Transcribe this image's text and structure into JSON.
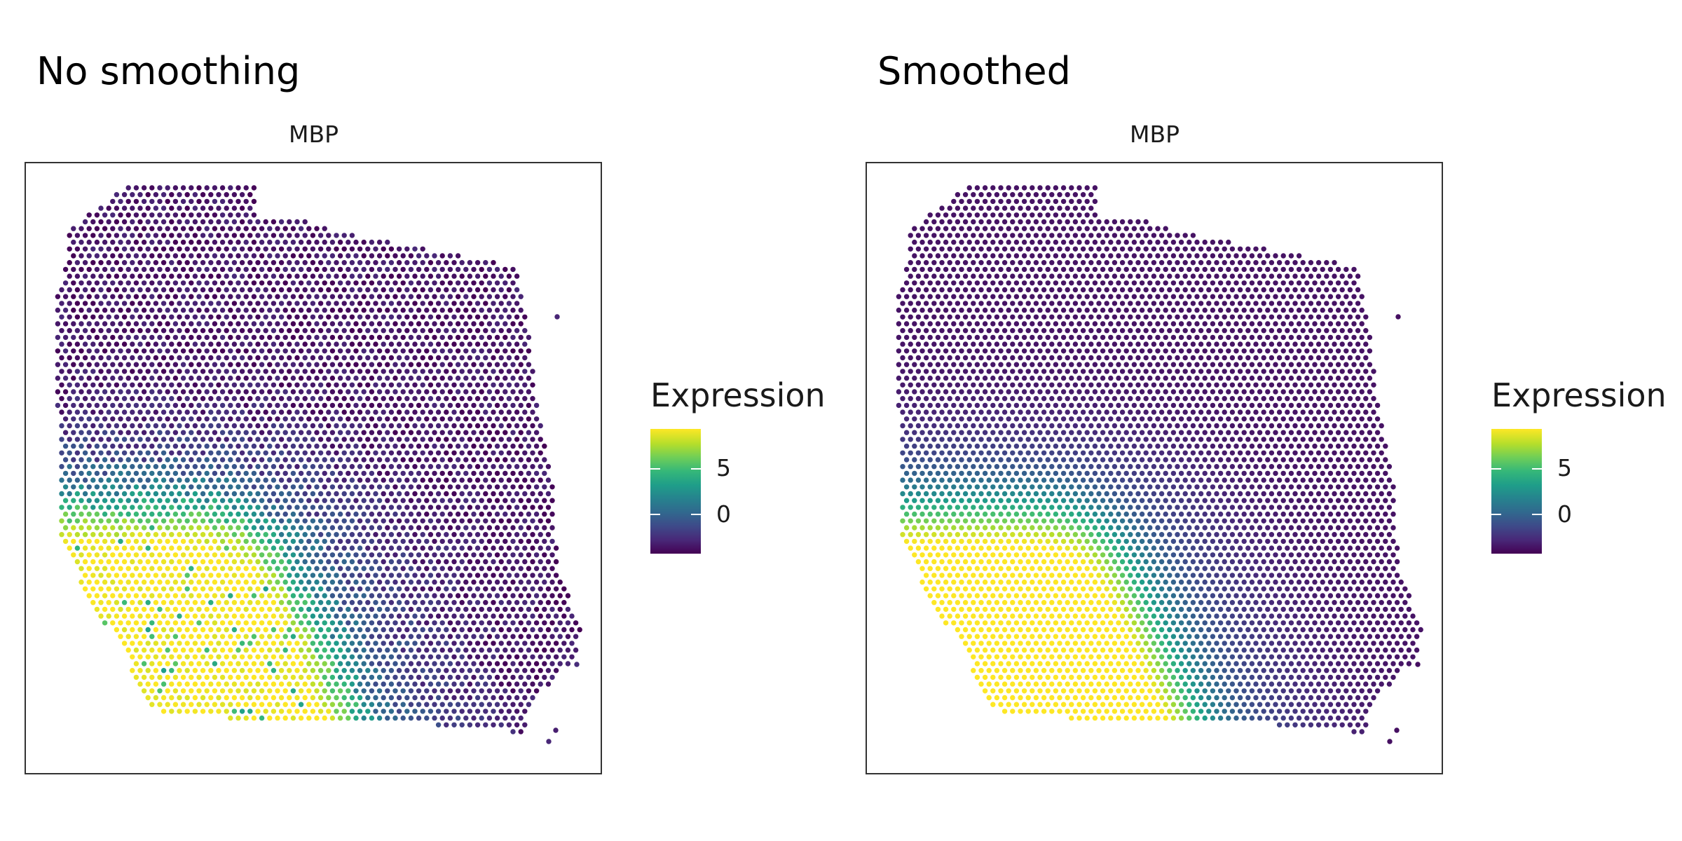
{
  "chart_data": [
    {
      "type": "scatter",
      "title": "No smoothing",
      "facet": "MBP",
      "legend": {
        "title": "Expression",
        "ticks": [
          5,
          0
        ],
        "range": [
          -3,
          9
        ],
        "colormap": "viridis",
        "position": "right"
      },
      "grid": false,
      "smoothed": false
    },
    {
      "type": "scatter",
      "title": "Smoothed",
      "facet": "MBP",
      "legend": {
        "title": "Expression",
        "ticks": [
          5,
          0
        ],
        "range": [
          -3,
          9
        ],
        "colormap": "viridis",
        "position": "right"
      },
      "grid": false,
      "smoothed": true
    }
  ]
}
